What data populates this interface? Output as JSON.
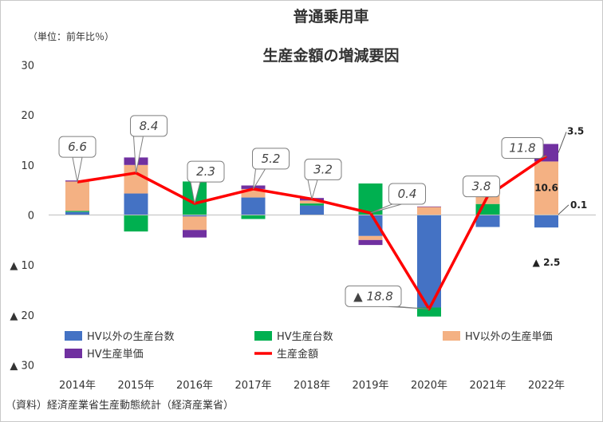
{
  "chart_data": {
    "type": "bar",
    "title_lines": [
      "普通乗用車",
      "生産金額の増減要因"
    ],
    "unit_label": "（単位：前年比％）",
    "source": "（資料）経済産業省生産動態統計（経済産業省）",
    "categories": [
      "2014年",
      "2015年",
      "2016年",
      "2017年",
      "2018年",
      "2019年",
      "2020年",
      "2021年",
      "2022年"
    ],
    "ylim": [
      -30,
      30
    ],
    "y_ticks": [
      {
        "value": 30,
        "label": "30"
      },
      {
        "value": 20,
        "label": "20"
      },
      {
        "value": 10,
        "label": "10"
      },
      {
        "value": 0,
        "label": "0"
      },
      {
        "value": -10,
        "label": "▲ 10"
      },
      {
        "value": -20,
        "label": "▲ 20"
      },
      {
        "value": -30,
        "label": "▲ 30"
      }
    ],
    "grid": false,
    "legend_position": "bottom",
    "series": [
      {
        "name": "HV以外の生産台数",
        "kind": "bar",
        "color": "#4472C4",
        "values": [
          0.6,
          4.3,
          -0.3,
          3.5,
          1.9,
          -4.2,
          -18.5,
          -2.4,
          -2.5
        ]
      },
      {
        "name": "HV生産台数",
        "kind": "bar",
        "color": "#00B050",
        "values": [
          0.2,
          -3.3,
          6.7,
          -0.8,
          0.4,
          6.3,
          -1.8,
          2.2,
          0.1
        ]
      },
      {
        "name": "HV以外の生産単価",
        "kind": "bar",
        "color": "#F4B183",
        "values": [
          5.9,
          5.7,
          -2.7,
          1.7,
          0.6,
          -0.8,
          1.6,
          2.5,
          10.6
        ]
      },
      {
        "name": "HV生産単価",
        "kind": "bar",
        "color": "#7030A0",
        "values": [
          0.2,
          1.5,
          -1.5,
          0.7,
          0.5,
          -1.0,
          0.1,
          1.4,
          3.5
        ]
      },
      {
        "name": "生産金額",
        "kind": "line",
        "color": "#FF0000",
        "values": [
          6.6,
          8.4,
          2.3,
          5.2,
          3.2,
          0.4,
          -18.8,
          3.8,
          11.8
        ]
      }
    ],
    "total_labels": [
      "6.6",
      "8.4",
      "2.3",
      "5.2",
      "3.2",
      "0.4",
      "▲ 18.8",
      "3.8",
      "11.8"
    ],
    "segment_labels": [
      {
        "category_index": 8,
        "series_index": 3,
        "text": "3.5"
      },
      {
        "category_index": 8,
        "series_index": 2,
        "text": "10.6"
      },
      {
        "category_index": 8,
        "series_index": 1,
        "text": "0.1"
      },
      {
        "category_index": 8,
        "series_index": 0,
        "text": "▲ 2.5"
      }
    ]
  }
}
